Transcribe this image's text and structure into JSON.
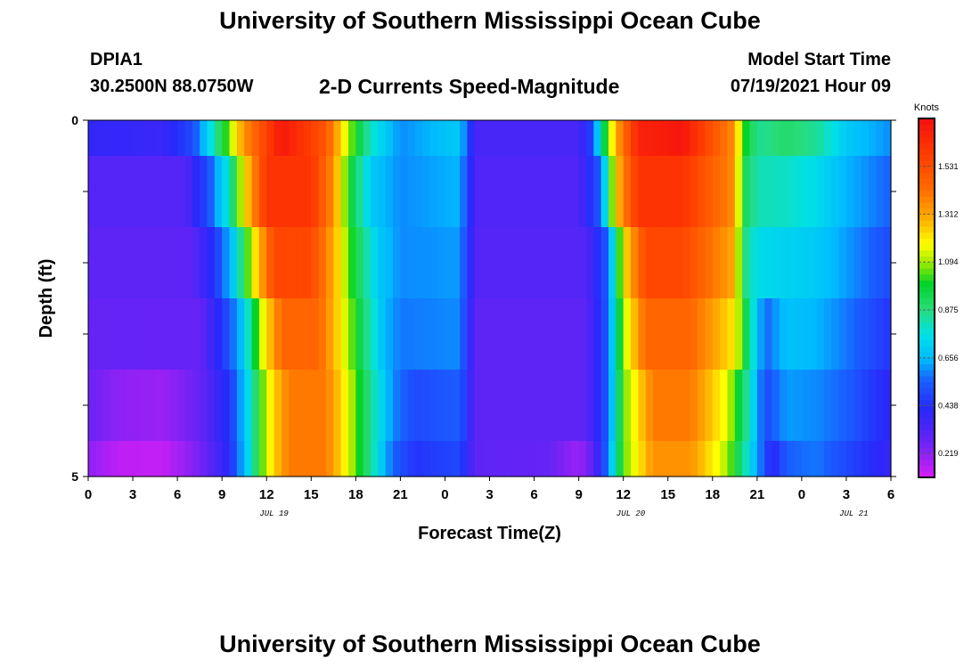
{
  "header": {
    "title": "University of Southern Mississippi Ocean Cube",
    "station_id": "DPIA1",
    "station_coords": "30.2500N  88.0750W",
    "subtitle": "2-D Currents Speed-Magnitude",
    "model_label": "Model Start Time",
    "model_time": "07/19/2021 Hour 09"
  },
  "footer": {
    "title": "University of Southern Mississippi Ocean Cube"
  },
  "chart_data": {
    "type": "heatmap",
    "title": "2-D Currents Speed-Magnitude",
    "xlabel": "Forecast Time(Z)",
    "ylabel": "Depth (ft)",
    "x_range_hours": [
      0,
      54
    ],
    "x_tick_labels": [
      "0",
      "3",
      "6",
      "9",
      "12",
      "15",
      "18",
      "21",
      "0",
      "3",
      "6",
      "9",
      "12",
      "15",
      "18",
      "21",
      "0",
      "3",
      "6"
    ],
    "date_labels": [
      {
        "hour": 12.5,
        "text": "JUL 19"
      },
      {
        "hour": 36.5,
        "text": "JUL 20"
      },
      {
        "hour": 51.5,
        "text": "JUL 21"
      }
    ],
    "y_range": [
      0,
      5
    ],
    "y_tick_labels": [
      "0",
      "5"
    ],
    "depth_layers": [
      0.5,
      1.5,
      2.5,
      3.5,
      4.5
    ],
    "colorbar": {
      "unit": "Knots",
      "range": [
        0.11,
        1.75
      ],
      "tick_values": [
        0.219,
        0.438,
        0.656,
        0.875,
        1.094,
        1.312,
        1.531
      ],
      "tick_labels": [
        "0.219",
        "0.438",
        "0.656",
        "0.875",
        "1.094",
        "1.312",
        "1.531"
      ]
    },
    "series": [
      {
        "name": "row-0",
        "depth_band": [
          0.0,
          0.5
        ],
        "key_hours": [
          0,
          5,
          7,
          8,
          9,
          10.5,
          13,
          16,
          17.5,
          19,
          21,
          25,
          26,
          33,
          34,
          34.5,
          35.5,
          37,
          40,
          43.5,
          44,
          45,
          47,
          49,
          51,
          54
        ],
        "values": [
          0.4,
          0.38,
          0.5,
          0.7,
          0.95,
          1.35,
          1.72,
          1.5,
          1.1,
          0.8,
          0.6,
          0.7,
          0.35,
          0.35,
          0.5,
          0.85,
          1.3,
          1.68,
          1.72,
          1.35,
          1.05,
          0.85,
          0.9,
          0.85,
          0.7,
          0.6
        ]
      },
      {
        "name": "row-1",
        "depth_band": [
          0.5,
          1.5
        ],
        "key_hours": [
          0,
          6.5,
          8,
          9.5,
          10.5,
          12,
          15,
          16.5,
          17.5,
          19,
          21,
          25,
          26,
          33,
          34.5,
          35.5,
          37,
          40,
          43.5,
          44,
          45,
          47,
          49,
          51,
          54
        ],
        "values": [
          0.32,
          0.32,
          0.5,
          0.8,
          1.2,
          1.62,
          1.62,
          1.35,
          1.0,
          0.7,
          0.6,
          0.65,
          0.33,
          0.33,
          0.55,
          1.25,
          1.62,
          1.62,
          1.35,
          0.95,
          0.82,
          0.8,
          0.75,
          0.65,
          0.55
        ]
      },
      {
        "name": "row-2",
        "depth_band": [
          1.5,
          2.5
        ],
        "key_hours": [
          0,
          7,
          8.5,
          10,
          11,
          12.5,
          15,
          16.5,
          18,
          19.5,
          21,
          25,
          26,
          33.5,
          35,
          36,
          37.5,
          40,
          43.5,
          44,
          45,
          47,
          49,
          51,
          54
        ],
        "values": [
          0.3,
          0.3,
          0.45,
          0.75,
          1.15,
          1.55,
          1.55,
          1.3,
          0.95,
          0.7,
          0.6,
          0.62,
          0.32,
          0.32,
          0.55,
          1.2,
          1.55,
          1.55,
          1.3,
          0.9,
          0.75,
          0.72,
          0.7,
          0.62,
          0.5
        ]
      },
      {
        "name": "row-3",
        "depth_band": [
          2.5,
          3.5
        ],
        "key_hours": [
          0,
          7.5,
          9,
          10.5,
          11.5,
          13,
          15.5,
          17,
          18.5,
          20,
          21,
          25,
          26,
          33.5,
          35,
          36,
          37.5,
          40.5,
          43.5,
          44.5,
          45.5,
          47,
          49,
          51,
          54
        ],
        "values": [
          0.28,
          0.28,
          0.45,
          0.7,
          1.1,
          1.45,
          1.45,
          1.2,
          0.9,
          0.65,
          0.58,
          0.6,
          0.3,
          0.3,
          0.55,
          1.1,
          1.45,
          1.45,
          1.2,
          0.85,
          0.55,
          0.68,
          0.65,
          0.58,
          0.45
        ]
      },
      {
        "name": "row-4",
        "depth_band": [
          3.5,
          4.5
        ],
        "key_hours": [
          0,
          2,
          5,
          7.5,
          9.5,
          11,
          12,
          13.5,
          16,
          17.5,
          19,
          20.5,
          22,
          25,
          26,
          33.5,
          35,
          36,
          38,
          40.5,
          43,
          44.5,
          45.5,
          47,
          49,
          51,
          54
        ],
        "values": [
          0.27,
          0.22,
          0.2,
          0.28,
          0.45,
          0.8,
          1.15,
          1.4,
          1.4,
          1.15,
          0.85,
          0.6,
          0.5,
          0.55,
          0.3,
          0.3,
          0.55,
          1.05,
          1.4,
          1.4,
          1.15,
          0.8,
          0.5,
          0.62,
          0.6,
          0.55,
          0.4
        ]
      },
      {
        "name": "row-4.5",
        "depth_band": [
          4.5,
          5.0
        ],
        "key_hours": [
          0,
          2,
          5,
          7.5,
          9.5,
          11,
          12,
          13.5,
          16,
          17.5,
          19,
          20.5,
          22,
          25,
          26,
          31,
          33,
          34,
          35,
          36,
          38,
          40.5,
          43,
          44.5,
          46,
          47,
          49,
          51,
          54
        ],
        "values": [
          0.22,
          0.15,
          0.14,
          0.25,
          0.42,
          0.8,
          1.15,
          1.4,
          1.4,
          1.15,
          0.85,
          0.55,
          0.45,
          0.5,
          0.3,
          0.28,
          0.2,
          0.3,
          0.6,
          1.05,
          1.35,
          1.35,
          1.1,
          0.75,
          0.4,
          0.55,
          0.58,
          0.5,
          0.38
        ]
      }
    ]
  }
}
